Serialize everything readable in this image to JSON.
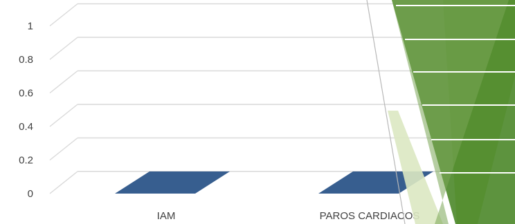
{
  "chart_data": {
    "type": "bar",
    "title": "",
    "xlabel": "",
    "ylabel": "",
    "categories": [
      "IAM",
      "PAROS CARDIACOS"
    ],
    "series": [
      {
        "values": [
          0,
          0
        ]
      }
    ],
    "yticks": [
      "0",
      "0.2",
      "0.4",
      "0.6",
      "0.8",
      "1"
    ],
    "ylim": [
      0,
      1.2
    ],
    "grid": true,
    "three_d": true,
    "colors": {
      "bar": "#375e8f",
      "gridline": "#d9d9d9",
      "text": "#404040",
      "decor_dark": "#4f8a2e",
      "decor_mid": "#6b9a45",
      "decor_light": "#a6cf5a",
      "decor_pale": "#dbe8c2"
    }
  }
}
